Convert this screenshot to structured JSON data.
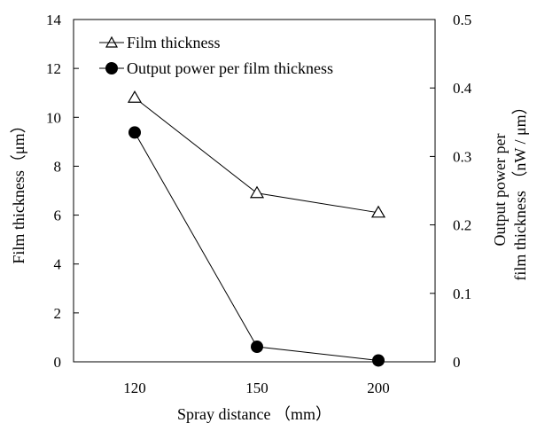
{
  "chart_data": {
    "type": "line",
    "categories": [
      "120",
      "150",
      "200"
    ],
    "xlabel": "Spray distance （mm）",
    "ylabel_left": "Film thickness（μm）",
    "ylabel_right_lines": [
      "Output power per",
      "film thickness （nW / μm）"
    ],
    "ylim_left": [
      0,
      14
    ],
    "ylim_right": [
      0,
      0.5
    ],
    "yticks_left": [
      "0",
      "2",
      "4",
      "6",
      "8",
      "10",
      "12",
      "14"
    ],
    "yticks_right": [
      "0",
      "0.1",
      "0.2",
      "0.3",
      "0.4",
      "0.5"
    ],
    "grid": false,
    "legend_position": "top-left",
    "series": [
      {
        "name": "Film thickness",
        "axis": "left",
        "marker": "open-triangle",
        "values": [
          10.8,
          6.9,
          6.1
        ]
      },
      {
        "name": "Output power per film thickness",
        "axis": "right",
        "marker": "filled-circle",
        "values": [
          0.335,
          0.022,
          0.002
        ]
      }
    ]
  }
}
